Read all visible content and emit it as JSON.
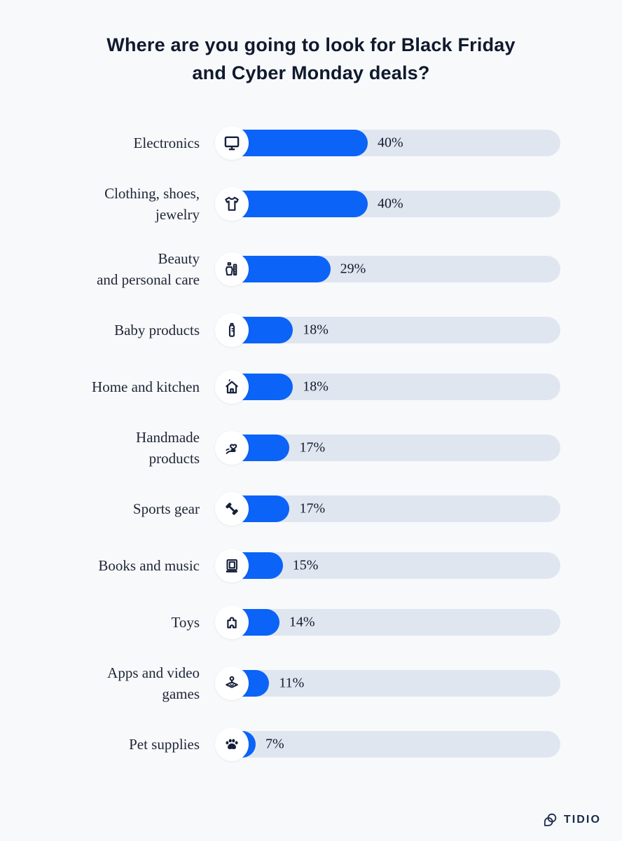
{
  "title": "Where are you going to look for Black Friday\nand Cyber Monday deals?",
  "chart_data": {
    "type": "bar",
    "orientation": "horizontal",
    "categories": [
      "Electronics",
      "Clothing, shoes,\njewelry",
      "Beauty\nand personal care",
      "Baby products",
      "Home and kitchen",
      "Handmade\nproducts",
      "Sports gear",
      "Books and music",
      "Toys",
      "Apps and video\ngames",
      "Pet supplies"
    ],
    "values": [
      40,
      40,
      29,
      18,
      18,
      17,
      17,
      15,
      14,
      11,
      7
    ],
    "value_suffix": "%",
    "icons": [
      "monitor-icon",
      "tshirt-icon",
      "cosmetics-icon",
      "baby-bottle-icon",
      "house-icon",
      "hand-heart-icon",
      "dumbbell-icon",
      "book-icon",
      "puzzle-icon",
      "joystick-icon",
      "paw-icon"
    ],
    "xlim": [
      0,
      100
    ],
    "grid": false,
    "legend": false,
    "bar_color": "#0B63F8",
    "track_color": "#E0E6F0",
    "icon_color": "#15203B"
  },
  "footer": {
    "brand": "TIDIO"
  }
}
